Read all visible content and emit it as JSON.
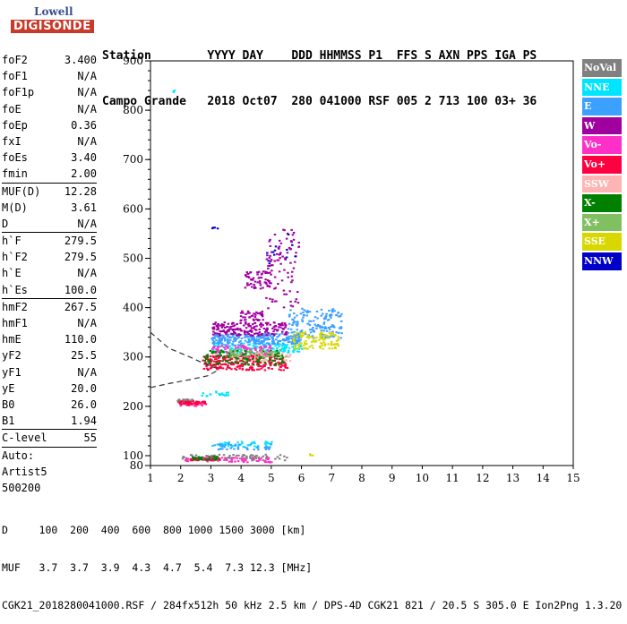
{
  "logo": {
    "line1": "Lowell",
    "line2": "DIGISONDE"
  },
  "header": {
    "line1": "Station        YYYY DAY    DDD HHMMSS P1  FFS S AXN PPS IGA PS",
    "line2": "Campo Grande   2018 Oct07  280 041000 RSF 005 2 713 100 03+ 36"
  },
  "params": [
    [
      {
        "n": "foF2",
        "v": "3.400"
      },
      {
        "n": "foF1",
        "v": "N/A"
      },
      {
        "n": "foF1p",
        "v": "N/A"
      },
      {
        "n": "foE",
        "v": "N/A"
      },
      {
        "n": "foEp",
        "v": "0.36"
      },
      {
        "n": "fxI",
        "v": "N/A"
      },
      {
        "n": "foEs",
        "v": "3.40"
      },
      {
        "n": "fmin",
        "v": "2.00"
      }
    ],
    [
      {
        "n": "MUF(D)",
        "v": "12.28"
      },
      {
        "n": "M(D)",
        "v": "3.61"
      },
      {
        "n": "D",
        "v": "N/A"
      }
    ],
    [
      {
        "n": "h`F",
        "v": "279.5"
      },
      {
        "n": "h`F2",
        "v": "279.5"
      },
      {
        "n": "h`E",
        "v": "N/A"
      },
      {
        "n": "h`Es",
        "v": "100.0"
      }
    ],
    [
      {
        "n": "hmF2",
        "v": "267.5"
      },
      {
        "n": "hmF1",
        "v": "N/A"
      },
      {
        "n": "hmE",
        "v": "110.0"
      },
      {
        "n": "yF2",
        "v": "25.5"
      },
      {
        "n": "yF1",
        "v": "N/A"
      },
      {
        "n": "yE",
        "v": "20.0"
      },
      {
        "n": "B0",
        "v": "26.0"
      },
      {
        "n": "B1",
        "v": "1.94"
      }
    ],
    [
      {
        "n": "C-level",
        "v": "55"
      }
    ],
    [
      {
        "n": "Auto:",
        "v": ""
      },
      {
        "n": "Artist5",
        "v": ""
      },
      {
        "n": "500200",
        "v": ""
      }
    ]
  ],
  "legend": [
    {
      "label": "NoVal",
      "bg": "#808080",
      "fg": "#ffffff"
    },
    {
      "label": "NNE",
      "bg": "#00e5ff",
      "fg": "#ffffff"
    },
    {
      "label": "E",
      "bg": "#3ca0ff",
      "fg": "#ffffff"
    },
    {
      "label": "W",
      "bg": "#a000a0",
      "fg": "#ffffff"
    },
    {
      "label": "Vo-",
      "bg": "#ff30c8",
      "fg": "#ffffff"
    },
    {
      "label": "Vo+",
      "bg": "#ff0040",
      "fg": "#ffffff"
    },
    {
      "label": "SSW",
      "bg": "#ffb4b4",
      "fg": "#ffffff"
    },
    {
      "label": "X-",
      "bg": "#008000",
      "fg": "#ffffff"
    },
    {
      "label": "X+",
      "bg": "#80c060",
      "fg": "#ffffff"
    },
    {
      "label": "SSE",
      "bg": "#d8d800",
      "fg": "#ffffff"
    },
    {
      "label": "NNW",
      "bg": "#0000c8",
      "fg": "#ffffff"
    }
  ],
  "chart_data": {
    "type": "scatter",
    "xlim": [
      1,
      15
    ],
    "ylim": [
      80,
      900
    ],
    "xticks": [
      1,
      2,
      3,
      4,
      5,
      6,
      7,
      8,
      9,
      10,
      11,
      12,
      13,
      14,
      15
    ],
    "yticks": [
      80,
      100,
      200,
      300,
      400,
      500,
      600,
      700,
      800,
      900
    ],
    "grid": false,
    "legend_position": "right",
    "series": [
      {
        "name": "NoVal",
        "color": "#808080",
        "clusters": [
          {
            "x": [
              1.8,
              2.4
            ],
            "y": [
              210,
              216
            ],
            "n": 30
          },
          {
            "x": [
              2.0,
              5.5
            ],
            "y": [
              92,
              104
            ],
            "n": 80
          }
        ]
      },
      {
        "name": "NNE",
        "color": "#00e5ff",
        "clusters": [
          {
            "x": [
              1.72,
              1.78
            ],
            "y": [
              808,
              842
            ],
            "n": 3
          },
          {
            "x": [
              3.0,
              6.0
            ],
            "y": [
              310,
              330
            ],
            "n": 160
          },
          {
            "x": [
              3.0,
              5.0
            ],
            "y": [
              118,
              130
            ],
            "n": 50
          },
          {
            "x": [
              2.6,
              3.6
            ],
            "y": [
              222,
              232
            ],
            "n": 20
          }
        ]
      },
      {
        "name": "E",
        "color": "#3ca0ff",
        "clusters": [
          {
            "x": [
              3.0,
              6.0
            ],
            "y": [
              328,
              350
            ],
            "n": 260
          },
          {
            "x": [
              5.5,
              7.3
            ],
            "y": [
              340,
              400
            ],
            "n": 150
          },
          {
            "x": [
              3.0,
              5.0
            ],
            "y": [
              114,
              126
            ],
            "n": 40
          }
        ]
      },
      {
        "name": "W",
        "color": "#a000a0",
        "clusters": [
          {
            "x": [
              3.0,
              5.5
            ],
            "y": [
              345,
              372
            ],
            "n": 180
          },
          {
            "x": [
              4.8,
              5.9
            ],
            "y": [
              400,
              560
            ],
            "n": 90
          },
          {
            "x": [
              4.1,
              5.0
            ],
            "y": [
              440,
              475
            ],
            "n": 60
          },
          {
            "x": [
              3.9,
              4.7
            ],
            "y": [
              375,
              395
            ],
            "n": 40
          }
        ]
      },
      {
        "name": "Vo-",
        "color": "#ff30c8",
        "clusters": [
          {
            "x": [
              3.0,
              5.0
            ],
            "y": [
              300,
              325
            ],
            "n": 120
          },
          {
            "x": [
              1.9,
              2.8
            ],
            "y": [
              202,
              210
            ],
            "n": 30
          },
          {
            "x": [
              2.1,
              5.0
            ],
            "y": [
              88,
              98
            ],
            "n": 70
          }
        ]
      },
      {
        "name": "Vo+",
        "color": "#ff0040",
        "clusters": [
          {
            "x": [
              2.7,
              5.5
            ],
            "y": [
              275,
              305
            ],
            "n": 230
          },
          {
            "x": [
              1.9,
              2.8
            ],
            "y": [
              205,
              212
            ],
            "n": 40
          },
          {
            "x": [
              2.2,
              3.3
            ],
            "y": [
              92,
              96
            ],
            "n": 30
          }
        ]
      },
      {
        "name": "SSW",
        "color": "#ffb4b4",
        "clusters": [
          {
            "x": [
              3.5,
              5.6
            ],
            "y": [
              293,
              310
            ],
            "n": 60
          }
        ]
      },
      {
        "name": "X-",
        "color": "#008000",
        "clusters": [
          {
            "x": [
              2.7,
              5.4
            ],
            "y": [
              285,
              315
            ],
            "n": 120
          },
          {
            "x": [
              2.3,
              3.2
            ],
            "y": [
              93,
              100
            ],
            "n": 25
          }
        ]
      },
      {
        "name": "X+",
        "color": "#80c060",
        "clusters": [
          {
            "x": [
              3.5,
              5.5
            ],
            "y": [
              300,
              318
            ],
            "n": 50
          }
        ]
      },
      {
        "name": "SSE",
        "color": "#d8d800",
        "clusters": [
          {
            "x": [
              5.7,
              7.2
            ],
            "y": [
              318,
              352
            ],
            "n": 110
          },
          {
            "x": [
              6.2,
              6.35
            ],
            "y": [
              102,
              106
            ],
            "n": 3
          }
        ]
      },
      {
        "name": "NNW",
        "color": "#0000c8",
        "clusters": [
          {
            "x": [
              4.8,
              5.8
            ],
            "y": [
              480,
              550
            ],
            "n": 12
          },
          {
            "x": [
              3.0,
              3.2
            ],
            "y": [
              560,
              580
            ],
            "n": 4
          }
        ]
      }
    ],
    "traces": [
      {
        "color": "#333333",
        "dashed": true,
        "points": [
          [
            1.0,
            350
          ],
          [
            1.6,
            318
          ],
          [
            2.3,
            300
          ],
          [
            2.9,
            283
          ],
          [
            3.2,
            277
          ]
        ]
      },
      {
        "color": "#333333",
        "dashed": true,
        "points": [
          [
            1.0,
            238
          ],
          [
            1.6,
            246
          ],
          [
            2.3,
            254
          ],
          [
            2.9,
            262
          ],
          [
            3.2,
            272
          ]
        ]
      }
    ]
  },
  "footer": {
    "line1": "D     100  200  400  600  800 1000 1500 3000 [km]",
    "line2": "MUF   3.7  3.7  3.9  4.3  4.7  5.4  7.3 12.3 [MHz]",
    "line3": "CGK21_2018280041000.RSF / 284fx512h 50 kHz 2.5 km / DPS-4D CGK21 821 / 20.5 S 305.0 E Ion2Png 1.3.20"
  }
}
